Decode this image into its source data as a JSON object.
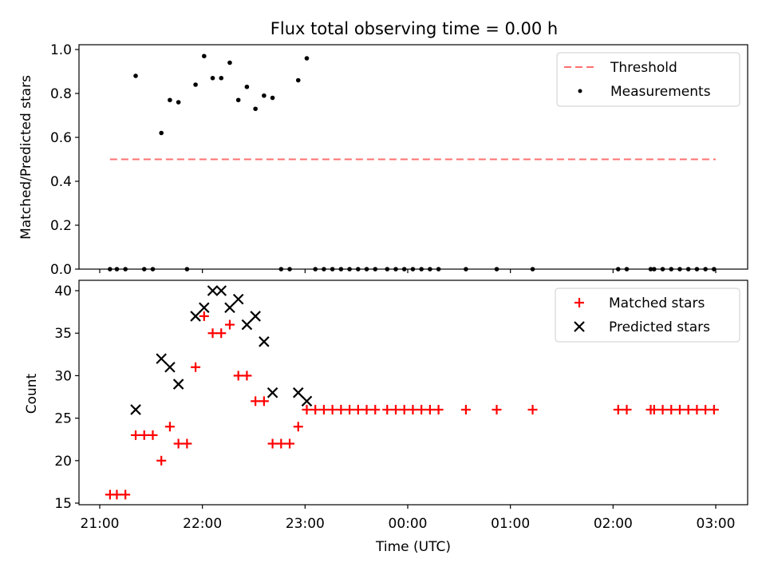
{
  "title": "Flux total observing time = 0.00 h",
  "colors": {
    "threshold": "#ff7070",
    "measurements": "#000000",
    "matched": "#ff0000",
    "predicted": "#000000"
  },
  "chart_data": [
    {
      "type": "scatter",
      "panel": "top",
      "ylabel": "Matched/Predicted stars",
      "xlabel": "",
      "ylim": [
        0,
        1.0
      ],
      "yticks": [
        0.0,
        0.2,
        0.4,
        0.6,
        0.8,
        1.0
      ],
      "ytick_labels": [
        "0.0",
        "0.2",
        "0.4",
        "0.6",
        "0.8",
        "1.0"
      ],
      "legend": {
        "placement": "top-right",
        "entries": [
          "Threshold",
          "Measurements"
        ]
      },
      "threshold": {
        "name": "Threshold",
        "y": 0.5,
        "x_start": "21:06",
        "x_end": "23:59+3:00"
      },
      "series": [
        {
          "name": "Measurements",
          "points": [
            [
              "21:06",
              0.0
            ],
            [
              "21:10",
              0.0
            ],
            [
              "21:15",
              0.0
            ],
            [
              "21:21",
              0.88
            ],
            [
              "21:26",
              0.0
            ],
            [
              "21:31",
              0.0
            ],
            [
              "21:36",
              0.62
            ],
            [
              "21:41",
              0.77
            ],
            [
              "21:46",
              0.76
            ],
            [
              "21:51",
              0.0
            ],
            [
              "21:56",
              0.84
            ],
            [
              "22:01",
              0.97
            ],
            [
              "22:06",
              0.87
            ],
            [
              "22:11",
              0.87
            ],
            [
              "22:16",
              0.94
            ],
            [
              "22:21",
              0.77
            ],
            [
              "22:26",
              0.83
            ],
            [
              "22:31",
              0.73
            ],
            [
              "22:36",
              0.79
            ],
            [
              "22:41",
              0.78
            ],
            [
              "22:46",
              0.0
            ],
            [
              "22:51",
              0.0
            ],
            [
              "22:56",
              0.86
            ],
            [
              "23:01",
              0.96
            ],
            [
              "23:06",
              0.0
            ],
            [
              "23:11",
              0.0
            ],
            [
              "23:16",
              0.0
            ],
            [
              "23:21",
              0.0
            ],
            [
              "23:26",
              0.0
            ],
            [
              "23:31",
              0.0
            ],
            [
              "23:36",
              0.0
            ],
            [
              "23:41",
              0.0
            ],
            [
              "23:48",
              0.0
            ],
            [
              "23:53",
              0.0
            ],
            [
              "23:58",
              0.0
            ],
            [
              "00:03",
              0.0
            ],
            [
              "00:08",
              0.0
            ],
            [
              "00:13",
              0.0
            ],
            [
              "00:18",
              0.0
            ],
            [
              "00:34",
              0.0
            ],
            [
              "00:52",
              0.0
            ],
            [
              "01:13",
              0.0
            ],
            [
              "02:03",
              0.0
            ],
            [
              "02:08",
              0.0
            ],
            [
              "02:22",
              0.0
            ],
            [
              "02:24",
              0.0
            ],
            [
              "02:29",
              0.0
            ],
            [
              "02:34",
              0.0
            ],
            [
              "02:39",
              0.0
            ],
            [
              "02:44",
              0.0
            ],
            [
              "02:49",
              0.0
            ],
            [
              "02:54",
              0.0
            ],
            [
              "02:59",
              0.0
            ]
          ]
        }
      ]
    },
    {
      "type": "scatter",
      "panel": "bottom",
      "ylabel": "Count",
      "xlabel": "Time (UTC)",
      "ylim": [
        14.7,
        41.2
      ],
      "yticks": [
        15,
        20,
        25,
        30,
        35,
        40
      ],
      "ytick_labels": [
        "15",
        "20",
        "25",
        "30",
        "35",
        "40"
      ],
      "x_ticks": [
        "21:00",
        "22:00",
        "23:00",
        "00:00",
        "01:00",
        "02:00",
        "03:00"
      ],
      "legend": {
        "placement": "top-right",
        "entries": [
          "Matched stars",
          "Predicted stars"
        ]
      },
      "series": [
        {
          "name": "Matched stars",
          "marker": "plus",
          "points": [
            [
              "21:06",
              16
            ],
            [
              "21:10",
              16
            ],
            [
              "21:15",
              16
            ],
            [
              "21:21",
              23
            ],
            [
              "21:26",
              23
            ],
            [
              "21:31",
              23
            ],
            [
              "21:36",
              20
            ],
            [
              "21:41",
              24
            ],
            [
              "21:46",
              22
            ],
            [
              "21:51",
              22
            ],
            [
              "21:56",
              31
            ],
            [
              "22:01",
              37
            ],
            [
              "22:06",
              35
            ],
            [
              "22:11",
              35
            ],
            [
              "22:16",
              36
            ],
            [
              "22:21",
              30
            ],
            [
              "22:26",
              30
            ],
            [
              "22:31",
              27
            ],
            [
              "22:36",
              27
            ],
            [
              "22:41",
              22
            ],
            [
              "22:46",
              22
            ],
            [
              "22:51",
              22
            ],
            [
              "22:56",
              24
            ],
            [
              "23:01",
              26
            ],
            [
              "23:06",
              26
            ],
            [
              "23:11",
              26
            ],
            [
              "23:16",
              26
            ],
            [
              "23:21",
              26
            ],
            [
              "23:26",
              26
            ],
            [
              "23:31",
              26
            ],
            [
              "23:36",
              26
            ],
            [
              "23:41",
              26
            ],
            [
              "23:48",
              26
            ],
            [
              "23:53",
              26
            ],
            [
              "23:58",
              26
            ],
            [
              "00:03",
              26
            ],
            [
              "00:08",
              26
            ],
            [
              "00:13",
              26
            ],
            [
              "00:18",
              26
            ],
            [
              "00:34",
              26
            ],
            [
              "00:52",
              26
            ],
            [
              "01:13",
              26
            ],
            [
              "02:03",
              26
            ],
            [
              "02:08",
              26
            ],
            [
              "02:22",
              26
            ],
            [
              "02:24",
              26
            ],
            [
              "02:29",
              26
            ],
            [
              "02:34",
              26
            ],
            [
              "02:39",
              26
            ],
            [
              "02:44",
              26
            ],
            [
              "02:49",
              26
            ],
            [
              "02:54",
              26
            ],
            [
              "02:59",
              26
            ]
          ]
        },
        {
          "name": "Predicted stars",
          "marker": "x",
          "points": [
            [
              "21:21",
              26
            ],
            [
              "21:36",
              32
            ],
            [
              "21:41",
              31
            ],
            [
              "21:46",
              29
            ],
            [
              "21:56",
              37
            ],
            [
              "22:01",
              38
            ],
            [
              "22:06",
              40
            ],
            [
              "22:11",
              40
            ],
            [
              "22:16",
              38
            ],
            [
              "22:21",
              39
            ],
            [
              "22:26",
              36
            ],
            [
              "22:31",
              37
            ],
            [
              "22:36",
              34
            ],
            [
              "22:41",
              28
            ],
            [
              "22:56",
              28
            ],
            [
              "23:01",
              27
            ]
          ]
        }
      ]
    }
  ]
}
